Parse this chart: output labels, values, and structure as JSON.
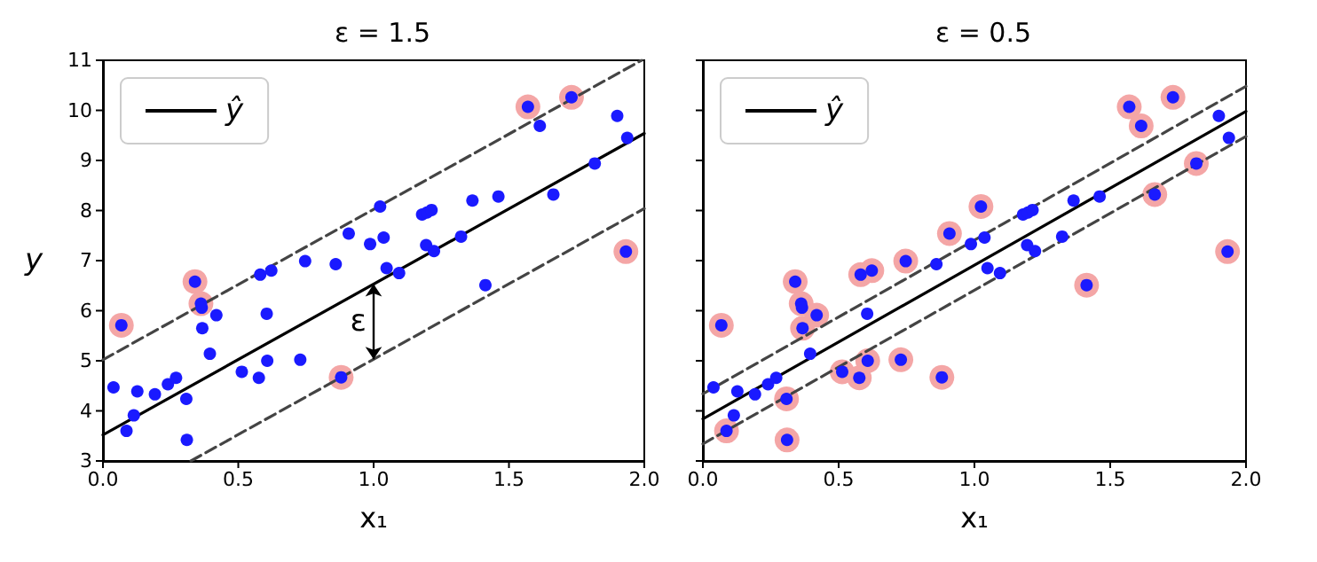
{
  "chart_data": [
    {
      "type": "scatter",
      "title": "ε = 1.5",
      "xlabel": "x₁",
      "ylabel": "y",
      "xlim": [
        0,
        2
      ],
      "ylim": [
        3,
        11
      ],
      "xticks": [
        {
          "value": 0,
          "label": "0.0"
        },
        {
          "value": 0.5,
          "label": "0.5"
        },
        {
          "value": 1,
          "label": "1.0"
        },
        {
          "value": 1.5,
          "label": "1.5"
        },
        {
          "value": 2,
          "label": "2.0"
        }
      ],
      "yticks": [
        3,
        4,
        5,
        6,
        7,
        8,
        9,
        10,
        11
      ],
      "grid": false,
      "legend": "top left",
      "annotations": [
        "ε"
      ],
      "series": [
        {
          "type": "scatter",
          "marker": "circle",
          "color": "#f4a6a6",
          "x": [
            0.068,
            0.34,
            0.362,
            0.88,
            1.57,
            1.731,
            1.932
          ],
          "values": [
            5.71,
            6.58,
            6.14,
            4.67,
            10.07,
            10.26,
            7.18
          ]
        },
        {
          "type": "scatter",
          "marker": "circle",
          "color": "#1a1aff",
          "x": [
            0.039,
            0.068,
            0.087,
            0.114,
            0.127,
            0.192,
            0.24,
            0.27,
            0.308,
            0.31,
            0.34,
            0.362,
            0.365,
            0.367,
            0.395,
            0.419,
            0.513,
            0.576,
            0.581,
            0.605,
            0.607,
            0.622,
            0.729,
            0.747,
            0.86,
            0.88,
            0.908,
            0.987,
            1.024,
            1.037,
            1.048,
            1.094,
            1.179,
            1.197,
            1.214,
            1.194,
            1.223,
            1.323,
            1.365,
            1.413,
            1.461,
            1.57,
            1.614,
            1.664,
            1.731,
            1.817,
            1.9,
            1.932,
            1.937
          ],
          "values": [
            4.47,
            5.71,
            3.6,
            3.91,
            4.39,
            4.33,
            4.53,
            4.66,
            4.24,
            3.42,
            6.58,
            6.14,
            6.06,
            5.65,
            5.14,
            5.91,
            4.78,
            4.66,
            6.72,
            5.94,
            5.0,
            6.8,
            5.02,
            6.99,
            6.93,
            4.67,
            7.54,
            7.33,
            8.08,
            7.46,
            6.85,
            6.75,
            7.92,
            7.96,
            8.01,
            7.31,
            7.19,
            7.48,
            8.2,
            6.51,
            8.28,
            10.07,
            9.69,
            8.32,
            10.26,
            8.94,
            9.89,
            7.18,
            9.45
          ]
        },
        {
          "type": "line",
          "name": "ŷ",
          "marker": "none",
          "line_style": "solid",
          "color": "#000000",
          "x": [
            0,
            2
          ],
          "values": [
            3.52,
            9.54
          ]
        },
        {
          "type": "line",
          "marker": "none",
          "line_style": "dashed",
          "color": "#444444",
          "x": [
            0,
            1.99
          ],
          "values": [
            5.02,
            11
          ]
        },
        {
          "type": "line",
          "marker": "none",
          "line_style": "dashed",
          "color": "#444444",
          "x": [
            0.325,
            2
          ],
          "values": [
            3,
            8.04
          ]
        }
      ]
    },
    {
      "type": "scatter",
      "title": "ε = 0.5",
      "xlabel": "x₁",
      "xlim": [
        0,
        2
      ],
      "ylim": [
        3,
        11
      ],
      "xticks": [
        {
          "value": 0,
          "label": "0.0"
        },
        {
          "value": 0.5,
          "label": "0.5"
        },
        {
          "value": 1,
          "label": "1.0"
        },
        {
          "value": 1.5,
          "label": "1.5"
        },
        {
          "value": 2,
          "label": "2.0"
        }
      ],
      "yticks": [
        3,
        4,
        5,
        6,
        7,
        8,
        9,
        10,
        11
      ],
      "tick_labels": "x",
      "grid": false,
      "legend": "top left",
      "series": [
        {
          "type": "scatter",
          "marker": "circle",
          "color": "#f4a6a6",
          "x": [
            0.068,
            0.087,
            0.308,
            0.31,
            0.34,
            0.362,
            0.367,
            0.419,
            0.513,
            0.576,
            0.581,
            0.607,
            0.622,
            0.729,
            0.747,
            0.88,
            0.908,
            1.024,
            1.413,
            1.57,
            1.614,
            1.664,
            1.731,
            1.817,
            1.932
          ],
          "values": [
            5.71,
            3.6,
            4.24,
            3.42,
            6.58,
            6.14,
            5.65,
            5.91,
            4.78,
            4.66,
            6.72,
            5.0,
            6.8,
            5.02,
            6.99,
            4.67,
            7.54,
            8.08,
            6.51,
            10.07,
            9.69,
            8.32,
            10.26,
            8.94,
            7.18
          ]
        },
        {
          "type": "scatter",
          "marker": "circle",
          "color": "#1a1aff",
          "x": [
            0.039,
            0.068,
            0.087,
            0.114,
            0.127,
            0.192,
            0.24,
            0.27,
            0.308,
            0.31,
            0.34,
            0.362,
            0.365,
            0.367,
            0.395,
            0.419,
            0.513,
            0.576,
            0.581,
            0.605,
            0.607,
            0.622,
            0.729,
            0.747,
            0.86,
            0.88,
            0.908,
            0.987,
            1.024,
            1.037,
            1.048,
            1.094,
            1.179,
            1.197,
            1.214,
            1.194,
            1.223,
            1.323,
            1.365,
            1.413,
            1.461,
            1.57,
            1.614,
            1.664,
            1.731,
            1.817,
            1.9,
            1.932,
            1.937
          ],
          "values": [
            4.47,
            5.71,
            3.6,
            3.91,
            4.39,
            4.33,
            4.53,
            4.66,
            4.24,
            3.42,
            6.58,
            6.14,
            6.06,
            5.65,
            5.14,
            5.91,
            4.78,
            4.66,
            6.72,
            5.94,
            5.0,
            6.8,
            5.02,
            6.99,
            6.93,
            4.67,
            7.54,
            7.33,
            8.08,
            7.46,
            6.85,
            6.75,
            7.92,
            7.96,
            8.01,
            7.31,
            7.19,
            7.48,
            8.2,
            6.51,
            8.28,
            10.07,
            9.69,
            8.32,
            10.26,
            8.94,
            9.89,
            7.18,
            9.45
          ]
        },
        {
          "type": "line",
          "name": "ŷ",
          "marker": "none",
          "line_style": "solid",
          "color": "#000000",
          "x": [
            0,
            2
          ],
          "values": [
            3.84,
            9.98
          ]
        },
        {
          "type": "line",
          "marker": "none",
          "line_style": "dashed",
          "color": "#444444",
          "x": [
            0,
            2
          ],
          "values": [
            4.34,
            10.48
          ]
        },
        {
          "type": "line",
          "marker": "none",
          "line_style": "dashed",
          "color": "#444444",
          "x": [
            0,
            2
          ],
          "values": [
            3.34,
            9.48
          ]
        }
      ]
    }
  ]
}
